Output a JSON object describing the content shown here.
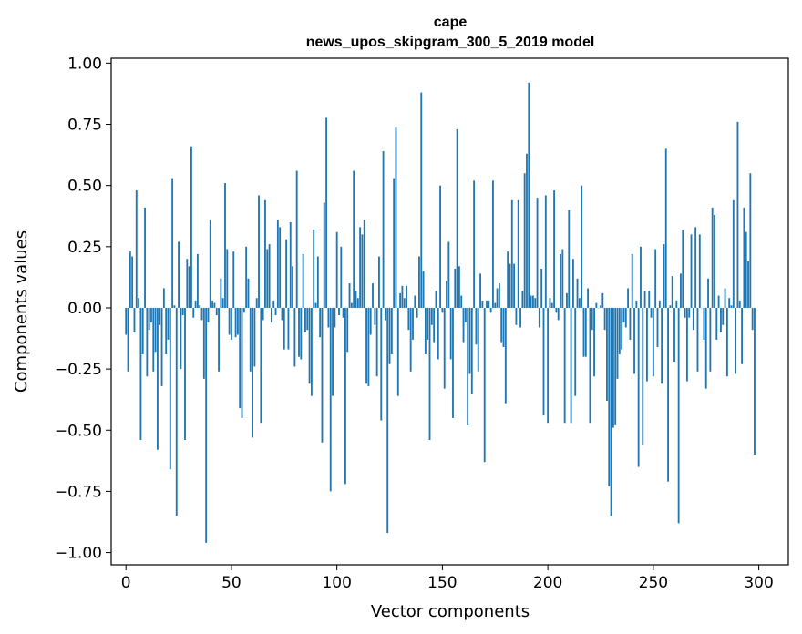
{
  "chart_data": {
    "type": "bar",
    "title": "cape",
    "subtitle": "news_upos_skipgram_300_5_2019 model",
    "xlabel": "Vector components",
    "ylabel": "Components values",
    "xlim": [
      -7,
      314
    ],
    "ylim": [
      -1.05,
      1.02
    ],
    "xticks": [
      0,
      50,
      100,
      150,
      200,
      250,
      300
    ],
    "yticks": [
      1.0,
      0.75,
      0.5,
      0.25,
      0.0,
      -0.25,
      -0.5,
      -0.75,
      -1.0
    ],
    "ytick_labels": [
      "1.00",
      "0.75",
      "0.50",
      "0.25",
      "0.00",
      "−0.25",
      "−0.50",
      "−0.75",
      "−1.00"
    ],
    "bar_color": "#1f77b4",
    "values": [
      -0.11,
      -0.26,
      0.23,
      0.21,
      -0.1,
      0.48,
      0.04,
      -0.54,
      -0.19,
      0.41,
      -0.28,
      -0.09,
      -0.06,
      -0.26,
      -0.18,
      -0.58,
      -0.07,
      -0.32,
      0.08,
      -0.19,
      -0.13,
      -0.66,
      0.53,
      0.01,
      -0.85,
      0.27,
      -0.25,
      -0.03,
      -0.54,
      0.2,
      0.17,
      0.66,
      -0.04,
      0.03,
      0.22,
      0.01,
      -0.05,
      -0.29,
      -0.96,
      -0.06,
      0.36,
      0.03,
      0.02,
      -0.03,
      -0.26,
      0.12,
      0.04,
      0.51,
      0.24,
      -0.11,
      -0.13,
      0.23,
      -0.12,
      -0.11,
      -0.41,
      -0.45,
      -0.02,
      0.25,
      0.12,
      -0.26,
      -0.53,
      -0.24,
      0.04,
      0.46,
      -0.47,
      -0.05,
      0.44,
      0.24,
      0.26,
      -0.06,
      0.03,
      -0.03,
      0.36,
      0.33,
      -0.05,
      -0.17,
      0.28,
      -0.17,
      0.35,
      0.17,
      -0.24,
      0.56,
      -0.2,
      -0.21,
      0.22,
      -0.1,
      -0.09,
      -0.31,
      -0.36,
      0.32,
      0.02,
      0.21,
      -0.12,
      -0.55,
      0.43,
      0.78,
      -0.08,
      -0.75,
      -0.36,
      -0.08,
      0.31,
      -0.03,
      0.25,
      -0.04,
      -0.72,
      -0.18,
      0.1,
      0.02,
      0.56,
      0.07,
      0.04,
      0.33,
      0.3,
      0.36,
      -0.31,
      -0.32,
      -0.11,
      0.1,
      -0.07,
      -0.28,
      0.21,
      -0.46,
      0.64,
      -0.05,
      -0.92,
      -0.23,
      -0.19,
      0.53,
      0.74,
      -0.36,
      0.06,
      0.09,
      0.04,
      0.09,
      -0.09,
      -0.26,
      -0.13,
      0.05,
      -0.04,
      0.21,
      0.88,
      0.15,
      -0.19,
      -0.13,
      -0.54,
      -0.07,
      -0.14,
      0.07,
      -0.21,
      0.5,
      -0.02,
      -0.33,
      0.11,
      0.27,
      -0.21,
      -0.45,
      0.16,
      0.73,
      0.17,
      0.05,
      -0.14,
      -0.06,
      -0.48,
      -0.27,
      -0.35,
      0.52,
      -0.15,
      -0.26,
      0.14,
      0.03,
      -0.63,
      0.03,
      0.03,
      -0.02,
      0.52,
      0.02,
      0.08,
      0.1,
      -0.14,
      -0.16,
      -0.39,
      0.23,
      0.18,
      0.44,
      0.18,
      -0.07,
      0.44,
      -0.08,
      0.07,
      0.55,
      0.63,
      0.92,
      0.05,
      0.05,
      0.04,
      0.45,
      -0.08,
      0.16,
      -0.44,
      0.46,
      -0.47,
      0.04,
      0.02,
      0.48,
      -0.02,
      -0.05,
      0.22,
      0.24,
      -0.47,
      0.06,
      0.4,
      -0.47,
      0.2,
      -0.36,
      0.12,
      0.04,
      0.5,
      -0.2,
      -0.2,
      0.08,
      -0.47,
      -0.09,
      -0.28,
      0.02,
      0.0,
      0.01,
      0.06,
      -0.09,
      -0.38,
      -0.73,
      -0.85,
      -0.49,
      -0.48,
      -0.29,
      -0.19,
      -0.17,
      -0.06,
      -0.08,
      0.08,
      -0.13,
      0.22,
      -0.27,
      0.03,
      -0.65,
      0.25,
      -0.56,
      0.07,
      -0.3,
      0.07,
      -0.04,
      -0.28,
      0.24,
      -0.16,
      0.03,
      -0.31,
      0.26,
      0.65,
      -0.71,
      0.01,
      0.13,
      -0.22,
      0.03,
      -0.88,
      0.14,
      0.32,
      -0.04,
      -0.3,
      -0.04,
      0.3,
      -0.09,
      0.33,
      -0.26,
      0.3,
      0.0,
      -0.13,
      -0.33,
      0.12,
      -0.26,
      0.41,
      0.38,
      -0.13,
      0.05,
      -0.1,
      -0.07,
      0.08,
      -0.28,
      0.04,
      0.01,
      0.44,
      -0.27,
      0.76,
      0.03,
      -0.23,
      0.41,
      0.31,
      0.19,
      0.55,
      -0.09,
      -0.6
    ]
  }
}
